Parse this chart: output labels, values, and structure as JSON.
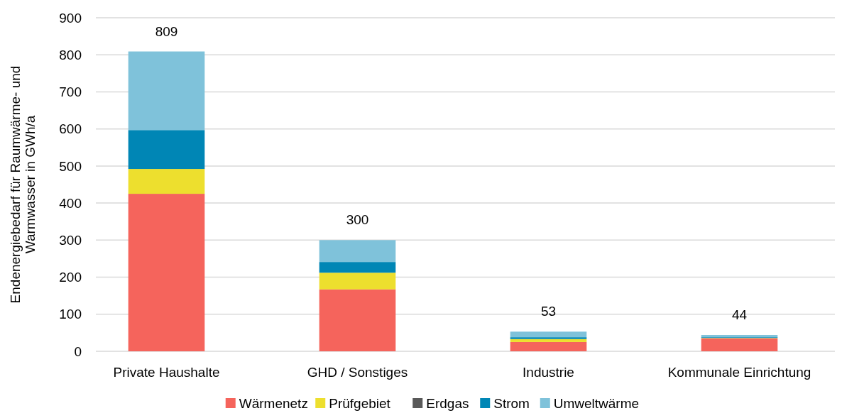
{
  "chart_data": {
    "type": "bar",
    "stacked": true,
    "ylabel": "Endenergiebedarf für Raumwärme- und Warmwasser in GWh/a",
    "categories": [
      "Private Haushalte",
      "GHD / Sonstiges",
      "Industrie",
      "Kommunale Einrichtung"
    ],
    "series": [
      {
        "name": "Wärmenetz",
        "color": "#f5645c",
        "values": [
          425,
          167,
          25,
          35
        ]
      },
      {
        "name": "Prüfgebiet",
        "color": "#eddf2e",
        "values": [
          67,
          45,
          8,
          1
        ]
      },
      {
        "name": "Erdgas",
        "color": "#595959",
        "values": [
          0,
          0,
          0,
          0
        ]
      },
      {
        "name": "Strom",
        "color": "#0086b5",
        "values": [
          105,
          29,
          5,
          2
        ]
      },
      {
        "name": "Umweltwärme",
        "color": "#7fc2da",
        "values": [
          212,
          59,
          15,
          6
        ]
      }
    ],
    "totals": [
      "809",
      "300",
      "53",
      "44"
    ],
    "ylim": [
      0,
      900
    ],
    "yticks": [
      0,
      100,
      200,
      300,
      400,
      500,
      600,
      700,
      800,
      900
    ],
    "grid": "y",
    "legend": "bottom"
  }
}
